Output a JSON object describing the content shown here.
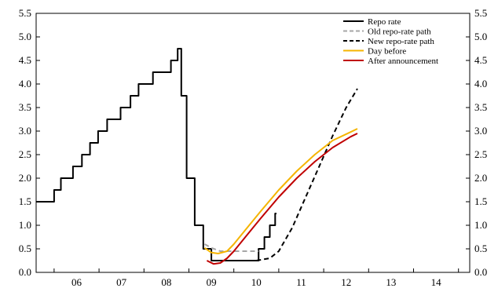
{
  "chart_data": {
    "type": "line",
    "x_axis": {
      "min": 2005.6,
      "max": 2015.25,
      "tick_labels": [
        {
          "label": "06",
          "value": 2006.5
        },
        {
          "label": "07",
          "value": 2007.5
        },
        {
          "label": "08",
          "value": 2008.5
        },
        {
          "label": "09",
          "value": 2009.5
        },
        {
          "label": "10",
          "value": 2010.5
        },
        {
          "label": "11",
          "value": 2011.5
        },
        {
          "label": "12",
          "value": 2012.5
        },
        {
          "label": "13",
          "value": 2013.5
        },
        {
          "label": "14",
          "value": 2014.5
        }
      ],
      "year_ticks": [
        2006,
        2007,
        2008,
        2009,
        2010,
        2011,
        2012,
        2013,
        2014,
        2015
      ]
    },
    "y_axis": {
      "min": 0,
      "max": 5.5,
      "ticks": [
        "0.0",
        "0.5",
        "1.0",
        "1.5",
        "2.0",
        "2.5",
        "3.0",
        "3.5",
        "4.0",
        "4.5",
        "5.0",
        "5.5"
      ],
      "left_and_right": true
    },
    "grid": false,
    "legend_position": "top-right",
    "series": [
      {
        "name": "Repo rate",
        "color": "#000000",
        "style": "solid",
        "step": true,
        "points": [
          [
            2005.6,
            1.5
          ],
          [
            2006.0,
            1.75
          ],
          [
            2006.15,
            2.0
          ],
          [
            2006.42,
            2.25
          ],
          [
            2006.62,
            2.5
          ],
          [
            2006.8,
            2.75
          ],
          [
            2006.98,
            3.0
          ],
          [
            2007.18,
            3.25
          ],
          [
            2007.48,
            3.5
          ],
          [
            2007.7,
            3.75
          ],
          [
            2007.88,
            4.0
          ],
          [
            2008.2,
            4.25
          ],
          [
            2008.6,
            4.5
          ],
          [
            2008.75,
            4.75
          ],
          [
            2008.83,
            3.75
          ],
          [
            2008.95,
            2.0
          ],
          [
            2009.13,
            1.0
          ],
          [
            2009.32,
            0.5
          ],
          [
            2009.5,
            0.25
          ],
          [
            2010.55,
            0.5
          ],
          [
            2010.68,
            0.75
          ],
          [
            2010.8,
            1.0
          ],
          [
            2010.92,
            1.25
          ],
          [
            2010.95,
            1.25
          ]
        ]
      },
      {
        "name": "Old repo-rate path",
        "color": "#a6a6a6",
        "style": "dashed",
        "points": [
          [
            2009.35,
            0.6
          ],
          [
            2009.5,
            0.52
          ],
          [
            2009.7,
            0.45
          ],
          [
            2010.0,
            0.45
          ],
          [
            2010.3,
            0.45
          ],
          [
            2010.55,
            0.45
          ]
        ]
      },
      {
        "name": "New repo-rate path",
        "color": "#000000",
        "style": "dashed",
        "points": [
          [
            2010.5,
            0.25
          ],
          [
            2010.8,
            0.3
          ],
          [
            2011.0,
            0.45
          ],
          [
            2011.3,
            0.95
          ],
          [
            2011.6,
            1.6
          ],
          [
            2011.9,
            2.25
          ],
          [
            2012.2,
            2.9
          ],
          [
            2012.5,
            3.5
          ],
          [
            2012.75,
            3.9
          ]
        ]
      },
      {
        "name": "Day before",
        "color": "#f5b400",
        "style": "solid",
        "points": [
          [
            2009.35,
            0.52
          ],
          [
            2009.5,
            0.42
          ],
          [
            2009.65,
            0.4
          ],
          [
            2009.85,
            0.45
          ],
          [
            2010.0,
            0.6
          ],
          [
            2010.3,
            0.95
          ],
          [
            2010.6,
            1.3
          ],
          [
            2011.0,
            1.75
          ],
          [
            2011.4,
            2.15
          ],
          [
            2011.8,
            2.5
          ],
          [
            2012.2,
            2.8
          ],
          [
            2012.6,
            2.98
          ],
          [
            2012.75,
            3.05
          ]
        ]
      },
      {
        "name": "After announcement",
        "color": "#c00000",
        "style": "solid",
        "points": [
          [
            2009.4,
            0.25
          ],
          [
            2009.55,
            0.18
          ],
          [
            2009.7,
            0.2
          ],
          [
            2009.85,
            0.3
          ],
          [
            2010.0,
            0.45
          ],
          [
            2010.3,
            0.8
          ],
          [
            2010.6,
            1.15
          ],
          [
            2011.0,
            1.6
          ],
          [
            2011.4,
            2.0
          ],
          [
            2011.8,
            2.35
          ],
          [
            2012.2,
            2.65
          ],
          [
            2012.6,
            2.88
          ],
          [
            2012.75,
            2.95
          ]
        ]
      }
    ]
  }
}
